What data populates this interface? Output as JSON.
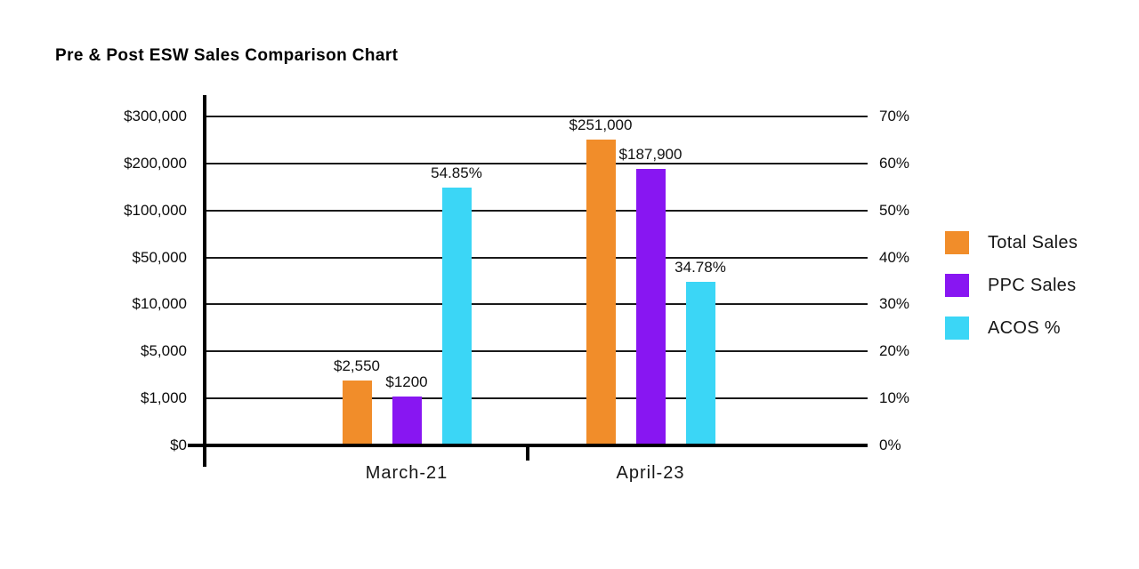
{
  "colors": {
    "background": "#FFFFFF",
    "ink": "#0F0F0F",
    "grid": "#1A1A1A",
    "axis": "#000000",
    "total_sales": "#F18D2A",
    "ppc_sales": "#8816F2",
    "acos": "#3BD6F6"
  },
  "chart_data": {
    "type": "bar",
    "title": "Pre & Post ESW Sales Comparison Chart",
    "categories": [
      "March-21",
      "April-23"
    ],
    "series": [
      {
        "name": "Total Sales",
        "axis": "left",
        "color": "#F18D2A",
        "values": [
          2550,
          251000
        ],
        "data_labels": [
          "$2,550",
          "$251,000"
        ]
      },
      {
        "name": "PPC Sales",
        "axis": "left",
        "color": "#8816F2",
        "values": [
          1200,
          187900
        ],
        "data_labels": [
          "$1200",
          "$187,900"
        ]
      },
      {
        "name": "ACOS %",
        "axis": "right",
        "color": "#3BD6F6",
        "values": [
          54.85,
          34.78
        ],
        "data_labels": [
          "54.85%",
          "34.78%"
        ]
      }
    ],
    "left_axis": {
      "tick_labels": [
        "$0",
        "$1,000",
        "$5,000",
        "$10,000",
        "$50,000",
        "$100,000",
        "$200,000",
        "$300,000"
      ],
      "tick_values": [
        0,
        1000,
        5000,
        10000,
        50000,
        100000,
        200000,
        300000
      ],
      "scale": "non-linear-evenly-spaced-ticks"
    },
    "right_axis": {
      "tick_labels": [
        "0%",
        "10%",
        "20%",
        "30%",
        "40%",
        "50%",
        "60%",
        "70%"
      ],
      "min": 0,
      "max": 70,
      "unit": "%"
    },
    "grid": true,
    "legend_position": "right"
  }
}
